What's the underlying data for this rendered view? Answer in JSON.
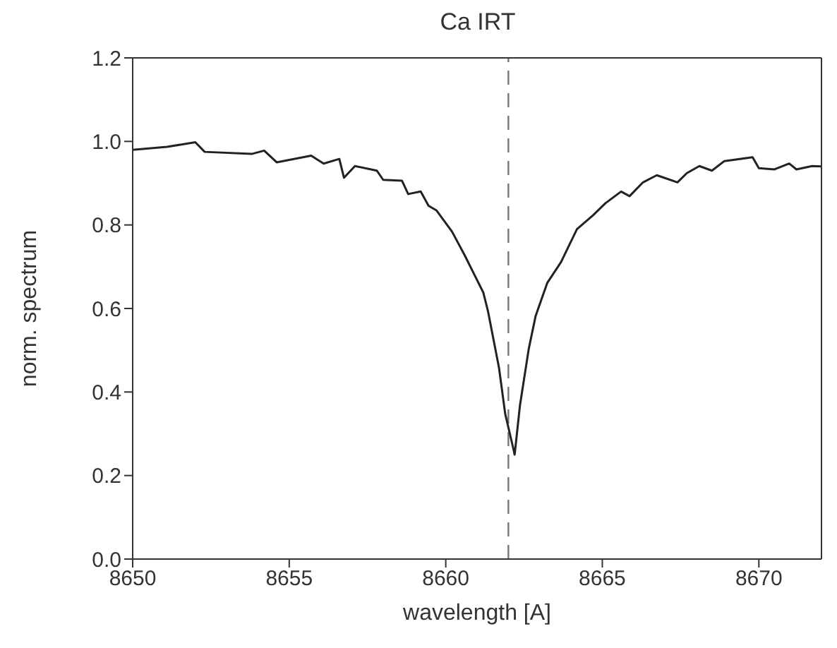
{
  "chart_data": {
    "type": "line",
    "title": "Ca IRT",
    "xlabel": "wavelength [A]",
    "ylabel": "norm. spectrum",
    "x": [
      8650.0,
      8651.1,
      8652.0,
      8652.3,
      8653.8,
      8654.2,
      8654.6,
      8655.7,
      8656.1,
      8656.6,
      8656.75,
      8657.1,
      8657.8,
      8658.0,
      8658.6,
      8658.8,
      8659.2,
      8659.45,
      8659.7,
      8660.2,
      8660.6,
      8660.9,
      8661.2,
      8661.35,
      8661.7,
      8661.9,
      8662.15,
      8662.2,
      8662.37,
      8662.65,
      8662.87,
      8663.24,
      8663.68,
      8664.19,
      8664.7,
      8665.1,
      8665.6,
      8665.87,
      8666.3,
      8666.74,
      8667.4,
      8667.7,
      8668.1,
      8668.5,
      8668.9,
      8669.8,
      8670.0,
      8670.5,
      8670.97,
      8671.2,
      8671.7,
      8672.0
    ],
    "series": [
      {
        "color": "#222222",
        "values": [
          0.98,
          0.987,
          0.998,
          0.975,
          0.97,
          0.978,
          0.95,
          0.966,
          0.947,
          0.958,
          0.913,
          0.941,
          0.93,
          0.908,
          0.906,
          0.874,
          0.88,
          0.846,
          0.835,
          0.784,
          0.728,
          0.683,
          0.638,
          0.593,
          0.458,
          0.347,
          0.267,
          0.25,
          0.368,
          0.503,
          0.582,
          0.661,
          0.711,
          0.79,
          0.823,
          0.852,
          0.88,
          0.869,
          0.902,
          0.919,
          0.902,
          0.924,
          0.941,
          0.93,
          0.953,
          0.962,
          0.936,
          0.933,
          0.947,
          0.933,
          0.941,
          0.94
        ]
      }
    ],
    "xlim": [
      8650,
      8672
    ],
    "xticks": [
      8650,
      8655,
      8660,
      8665,
      8670
    ],
    "ylim": [
      0,
      1.2
    ],
    "yticks": [
      {
        "value": 0,
        "label": "0.0"
      },
      {
        "value": 0.2,
        "label": "0.2"
      },
      {
        "value": 0.4,
        "label": "0.4"
      },
      {
        "value": 0.6,
        "label": "0.6"
      },
      {
        "value": 0.8,
        "label": "0.8"
      },
      {
        "value": 1,
        "label": "1.0"
      },
      {
        "value": 1.2,
        "label": "1.2"
      }
    ],
    "ref_lines": [
      {
        "axis": "x",
        "value": 8662.0,
        "color": "#777777",
        "line_style": "dashed"
      }
    ],
    "grid": false,
    "legend": false,
    "marker": "none",
    "line_style": "solid"
  }
}
